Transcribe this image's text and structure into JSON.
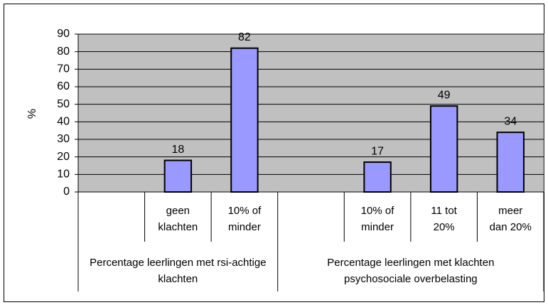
{
  "chart_data": {
    "type": "bar",
    "ylabel": "%",
    "color": "#9999ff",
    "groups": [
      {
        "name": "Percentage leerlingen met rsi-achtige klachten",
        "categories": [
          null,
          "geen klachten",
          "10% of minder"
        ],
        "values": [
          null,
          18,
          82
        ]
      },
      {
        "name": "Percentage leerlingen met klachten psychosociale overbelasting",
        "categories": [
          null,
          "10% of minder",
          "11 tot 20%",
          "meer dan 20%"
        ],
        "values": [
          null,
          17,
          49,
          34
        ]
      }
    ],
    "ylim": [
      0,
      90
    ],
    "yticks": [
      0,
      10,
      20,
      30,
      40,
      50,
      60,
      70,
      80,
      90
    ],
    "grid": true
  }
}
